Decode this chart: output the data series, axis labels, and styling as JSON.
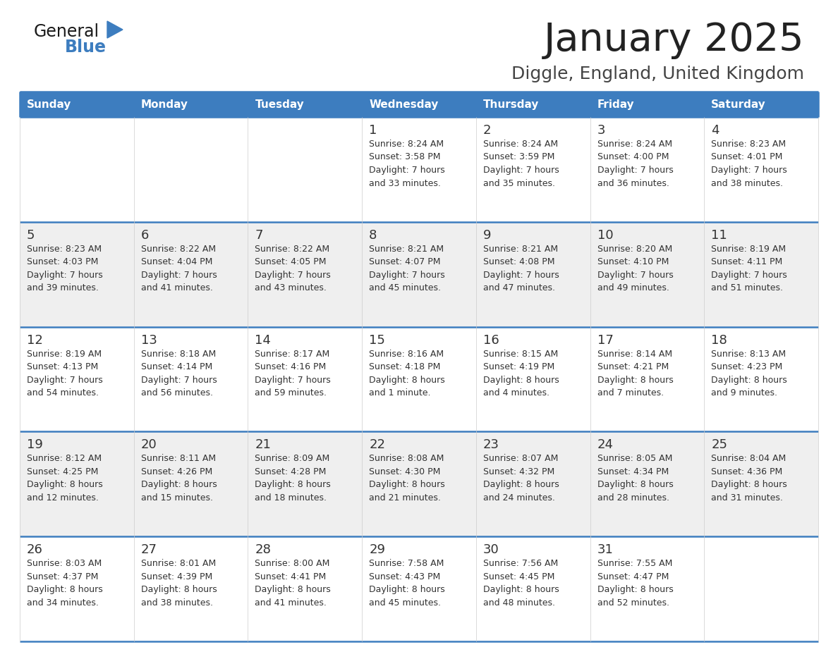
{
  "title": "January 2025",
  "subtitle": "Diggle, England, United Kingdom",
  "header_bg_color": "#3d7dbf",
  "header_text_color": "#ffffff",
  "title_color": "#222222",
  "subtitle_color": "#444444",
  "cell_bg_light": "#efefef",
  "cell_bg_white": "#ffffff",
  "cell_text_color": "#333333",
  "border_color": "#3d7dbf",
  "line_color_inner": "#3d7dbf",
  "days_of_week": [
    "Sunday",
    "Monday",
    "Tuesday",
    "Wednesday",
    "Thursday",
    "Friday",
    "Saturday"
  ],
  "weeks": [
    [
      {
        "day": "",
        "info": ""
      },
      {
        "day": "",
        "info": ""
      },
      {
        "day": "",
        "info": ""
      },
      {
        "day": "1",
        "info": "Sunrise: 8:24 AM\nSunset: 3:58 PM\nDaylight: 7 hours\nand 33 minutes."
      },
      {
        "day": "2",
        "info": "Sunrise: 8:24 AM\nSunset: 3:59 PM\nDaylight: 7 hours\nand 35 minutes."
      },
      {
        "day": "3",
        "info": "Sunrise: 8:24 AM\nSunset: 4:00 PM\nDaylight: 7 hours\nand 36 minutes."
      },
      {
        "day": "4",
        "info": "Sunrise: 8:23 AM\nSunset: 4:01 PM\nDaylight: 7 hours\nand 38 minutes."
      }
    ],
    [
      {
        "day": "5",
        "info": "Sunrise: 8:23 AM\nSunset: 4:03 PM\nDaylight: 7 hours\nand 39 minutes."
      },
      {
        "day": "6",
        "info": "Sunrise: 8:22 AM\nSunset: 4:04 PM\nDaylight: 7 hours\nand 41 minutes."
      },
      {
        "day": "7",
        "info": "Sunrise: 8:22 AM\nSunset: 4:05 PM\nDaylight: 7 hours\nand 43 minutes."
      },
      {
        "day": "8",
        "info": "Sunrise: 8:21 AM\nSunset: 4:07 PM\nDaylight: 7 hours\nand 45 minutes."
      },
      {
        "day": "9",
        "info": "Sunrise: 8:21 AM\nSunset: 4:08 PM\nDaylight: 7 hours\nand 47 minutes."
      },
      {
        "day": "10",
        "info": "Sunrise: 8:20 AM\nSunset: 4:10 PM\nDaylight: 7 hours\nand 49 minutes."
      },
      {
        "day": "11",
        "info": "Sunrise: 8:19 AM\nSunset: 4:11 PM\nDaylight: 7 hours\nand 51 minutes."
      }
    ],
    [
      {
        "day": "12",
        "info": "Sunrise: 8:19 AM\nSunset: 4:13 PM\nDaylight: 7 hours\nand 54 minutes."
      },
      {
        "day": "13",
        "info": "Sunrise: 8:18 AM\nSunset: 4:14 PM\nDaylight: 7 hours\nand 56 minutes."
      },
      {
        "day": "14",
        "info": "Sunrise: 8:17 AM\nSunset: 4:16 PM\nDaylight: 7 hours\nand 59 minutes."
      },
      {
        "day": "15",
        "info": "Sunrise: 8:16 AM\nSunset: 4:18 PM\nDaylight: 8 hours\nand 1 minute."
      },
      {
        "day": "16",
        "info": "Sunrise: 8:15 AM\nSunset: 4:19 PM\nDaylight: 8 hours\nand 4 minutes."
      },
      {
        "day": "17",
        "info": "Sunrise: 8:14 AM\nSunset: 4:21 PM\nDaylight: 8 hours\nand 7 minutes."
      },
      {
        "day": "18",
        "info": "Sunrise: 8:13 AM\nSunset: 4:23 PM\nDaylight: 8 hours\nand 9 minutes."
      }
    ],
    [
      {
        "day": "19",
        "info": "Sunrise: 8:12 AM\nSunset: 4:25 PM\nDaylight: 8 hours\nand 12 minutes."
      },
      {
        "day": "20",
        "info": "Sunrise: 8:11 AM\nSunset: 4:26 PM\nDaylight: 8 hours\nand 15 minutes."
      },
      {
        "day": "21",
        "info": "Sunrise: 8:09 AM\nSunset: 4:28 PM\nDaylight: 8 hours\nand 18 minutes."
      },
      {
        "day": "22",
        "info": "Sunrise: 8:08 AM\nSunset: 4:30 PM\nDaylight: 8 hours\nand 21 minutes."
      },
      {
        "day": "23",
        "info": "Sunrise: 8:07 AM\nSunset: 4:32 PM\nDaylight: 8 hours\nand 24 minutes."
      },
      {
        "day": "24",
        "info": "Sunrise: 8:05 AM\nSunset: 4:34 PM\nDaylight: 8 hours\nand 28 minutes."
      },
      {
        "day": "25",
        "info": "Sunrise: 8:04 AM\nSunset: 4:36 PM\nDaylight: 8 hours\nand 31 minutes."
      }
    ],
    [
      {
        "day": "26",
        "info": "Sunrise: 8:03 AM\nSunset: 4:37 PM\nDaylight: 8 hours\nand 34 minutes."
      },
      {
        "day": "27",
        "info": "Sunrise: 8:01 AM\nSunset: 4:39 PM\nDaylight: 8 hours\nand 38 minutes."
      },
      {
        "day": "28",
        "info": "Sunrise: 8:00 AM\nSunset: 4:41 PM\nDaylight: 8 hours\nand 41 minutes."
      },
      {
        "day": "29",
        "info": "Sunrise: 7:58 AM\nSunset: 4:43 PM\nDaylight: 8 hours\nand 45 minutes."
      },
      {
        "day": "30",
        "info": "Sunrise: 7:56 AM\nSunset: 4:45 PM\nDaylight: 8 hours\nand 48 minutes."
      },
      {
        "day": "31",
        "info": "Sunrise: 7:55 AM\nSunset: 4:47 PM\nDaylight: 8 hours\nand 52 minutes."
      },
      {
        "day": "",
        "info": ""
      }
    ]
  ],
  "logo_text_general": "General",
  "logo_text_blue": "Blue",
  "logo_color_general": "#1a1a1a",
  "logo_color_blue": "#3d7dbf",
  "logo_triangle_color": "#3d7dbf",
  "figsize": [
    11.88,
    9.18
  ],
  "dpi": 100
}
